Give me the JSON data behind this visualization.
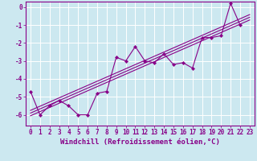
{
  "xlabel": "Windchill (Refroidissement éolien,°C)",
  "bg_color": "#cce8f0",
  "grid_color": "#ffffff",
  "line_color": "#880088",
  "xlim": [
    -0.5,
    23.5
  ],
  "ylim": [
    -6.6,
    0.3
  ],
  "y_main": [
    -4.7,
    -6.0,
    -5.5,
    -5.2,
    -5.5,
    -6.0,
    -6.0,
    -4.8,
    -4.7,
    -2.8,
    -3.0,
    -2.2,
    -3.0,
    -3.1,
    -2.6,
    -3.2,
    -3.1,
    -3.4,
    -1.7,
    -1.7,
    -1.6,
    0.2,
    -1.0,
    null
  ],
  "xticks": [
    0,
    1,
    2,
    3,
    4,
    5,
    6,
    7,
    8,
    9,
    10,
    11,
    12,
    13,
    14,
    15,
    16,
    17,
    18,
    19,
    20,
    21,
    22,
    23
  ],
  "yticks": [
    0,
    -1,
    -2,
    -3,
    -4,
    -5,
    -6
  ],
  "tick_fontsize": 5.5,
  "xlabel_fontsize": 6.5,
  "reg_offsets": [
    0.0,
    0.15,
    0.3
  ]
}
